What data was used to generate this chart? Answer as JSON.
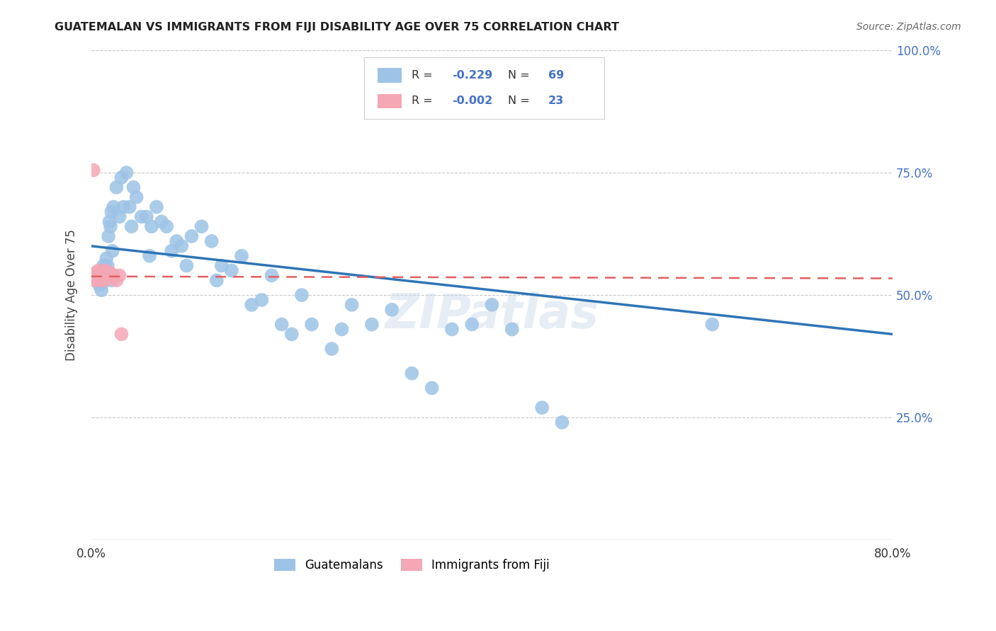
{
  "title": "GUATEMALAN VS IMMIGRANTS FROM FIJI DISABILITY AGE OVER 75 CORRELATION CHART",
  "source": "Source: ZipAtlas.com",
  "ylabel": "Disability Age Over 75",
  "xlim": [
    0.0,
    0.8
  ],
  "ylim": [
    0.0,
    1.0
  ],
  "blue_color": "#9dc3e6",
  "pink_color": "#f4a7b4",
  "blue_line_color": "#2e75b6",
  "pink_line_color": "#e06060",
  "grid_color": "#c8c8c8",
  "guatemalans_x": [
    0.005,
    0.007,
    0.008,
    0.009,
    0.01,
    0.01,
    0.011,
    0.012,
    0.012,
    0.013,
    0.014,
    0.015,
    0.015,
    0.016,
    0.017,
    0.018,
    0.019,
    0.02,
    0.02,
    0.021,
    0.022,
    0.025,
    0.028,
    0.03,
    0.032,
    0.035,
    0.038,
    0.04,
    0.042,
    0.045,
    0.05,
    0.055,
    0.058,
    0.06,
    0.065,
    0.07,
    0.075,
    0.08,
    0.085,
    0.09,
    0.095,
    0.1,
    0.11,
    0.12,
    0.125,
    0.13,
    0.14,
    0.15,
    0.16,
    0.17,
    0.18,
    0.19,
    0.2,
    0.21,
    0.22,
    0.24,
    0.25,
    0.26,
    0.28,
    0.3,
    0.32,
    0.34,
    0.36,
    0.38,
    0.4,
    0.42,
    0.45,
    0.47,
    0.62
  ],
  "guatemalans_y": [
    0.53,
    0.545,
    0.52,
    0.535,
    0.55,
    0.51,
    0.525,
    0.54,
    0.56,
    0.53,
    0.555,
    0.545,
    0.575,
    0.56,
    0.62,
    0.65,
    0.64,
    0.67,
    0.53,
    0.59,
    0.68,
    0.72,
    0.66,
    0.74,
    0.68,
    0.75,
    0.68,
    0.64,
    0.72,
    0.7,
    0.66,
    0.66,
    0.58,
    0.64,
    0.68,
    0.65,
    0.64,
    0.59,
    0.61,
    0.6,
    0.56,
    0.62,
    0.64,
    0.61,
    0.53,
    0.56,
    0.55,
    0.58,
    0.48,
    0.49,
    0.54,
    0.44,
    0.42,
    0.5,
    0.44,
    0.39,
    0.43,
    0.48,
    0.44,
    0.47,
    0.34,
    0.31,
    0.43,
    0.44,
    0.48,
    0.43,
    0.27,
    0.24,
    0.44
  ],
  "fiji_x": [
    0.002,
    0.003,
    0.004,
    0.005,
    0.006,
    0.007,
    0.008,
    0.009,
    0.01,
    0.011,
    0.012,
    0.013,
    0.014,
    0.015,
    0.016,
    0.017,
    0.018,
    0.019,
    0.02,
    0.022,
    0.025,
    0.028,
    0.03
  ],
  "fiji_y": [
    0.755,
    0.53,
    0.545,
    0.54,
    0.535,
    0.55,
    0.53,
    0.545,
    0.545,
    0.54,
    0.535,
    0.53,
    0.55,
    0.54,
    0.54,
    0.535,
    0.545,
    0.545,
    0.535,
    0.54,
    0.53,
    0.54,
    0.42
  ],
  "legend_blue_r": "-0.229",
  "legend_blue_n": "69",
  "legend_pink_r": "-0.002",
  "legend_pink_n": "23"
}
